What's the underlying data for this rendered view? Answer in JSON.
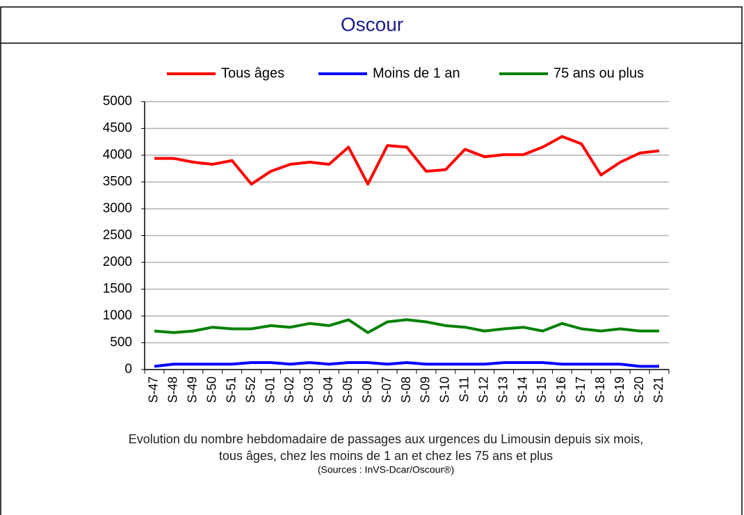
{
  "header": {
    "title": "Oscour"
  },
  "chart_data": {
    "type": "line",
    "categories": [
      "S-47",
      "S-48",
      "S-49",
      "S-50",
      "S-51",
      "S-52",
      "S-01",
      "S-02",
      "S-03",
      "S-04",
      "S-05",
      "S-06",
      "S-07",
      "S-08",
      "S-09",
      "S-10",
      "S-11",
      "S-12",
      "S-13",
      "S-14",
      "S-15",
      "S-16",
      "S-17",
      "S-18",
      "S-19",
      "S-20",
      "S-21"
    ],
    "series": [
      {
        "name": "Tous âges",
        "color": "#ff0000",
        "values": [
          3940,
          3940,
          3870,
          3830,
          3900,
          3460,
          3700,
          3830,
          3870,
          3830,
          4150,
          3460,
          4180,
          4150,
          3700,
          3730,
          4110,
          3970,
          4010,
          4010,
          4150,
          4350,
          4210,
          3630,
          3870,
          4040,
          4080
        ]
      },
      {
        "name": "Moins de 1 an",
        "color": "#0000ff",
        "values": [
          60,
          100,
          100,
          100,
          100,
          130,
          130,
          100,
          130,
          100,
          130,
          130,
          100,
          130,
          100,
          100,
          100,
          100,
          130,
          130,
          130,
          100,
          100,
          100,
          100,
          60,
          60
        ]
      },
      {
        "name": "75 ans ou plus",
        "color": "#008000",
        "values": [
          720,
          690,
          720,
          790,
          760,
          760,
          820,
          790,
          860,
          820,
          930,
          690,
          890,
          930,
          890,
          820,
          790,
          720,
          760,
          790,
          720,
          860,
          760,
          720,
          760,
          720,
          720
        ]
      }
    ],
    "ylim": [
      0,
      5000
    ],
    "yticks": [
      0,
      500,
      1000,
      1500,
      2000,
      2500,
      3000,
      3500,
      4000,
      4500,
      5000
    ],
    "grid": true,
    "legend": "top"
  },
  "caption": {
    "line1": "Evolution du nombre hebdomadaire de passages aux urgences du Limousin depuis six mois,",
    "line2": "tous âges, chez les moins de 1 an et chez les 75 ans et plus",
    "sources": "(Sources : InVS-Dcar/Oscour®)"
  }
}
